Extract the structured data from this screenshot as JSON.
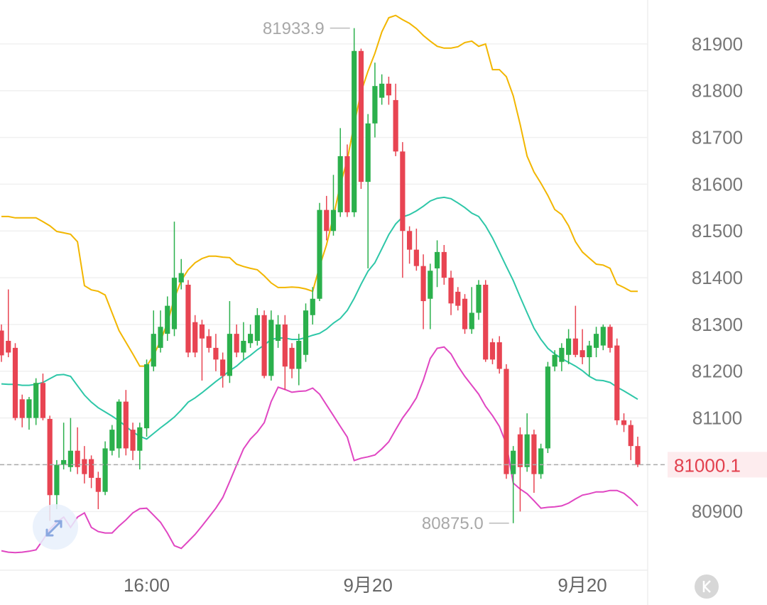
{
  "chart_data": {
    "type": "candlestick",
    "categories": [
      null,
      null,
      null,
      null,
      null,
      null,
      null,
      null,
      null,
      null,
      null,
      null,
      null,
      null,
      null,
      null,
      null,
      null,
      null,
      null,
      null,
      "16:00",
      null,
      null,
      null,
      null,
      null,
      null,
      null,
      null,
      null,
      null,
      null,
      null,
      null,
      null,
      null,
      null,
      null,
      null,
      null,
      null,
      null,
      null,
      null,
      null,
      null,
      null,
      null,
      null,
      null,
      null,
      null,
      "9月20",
      null,
      null,
      null,
      null,
      null,
      null,
      null,
      null,
      null,
      null,
      null,
      null,
      null,
      null,
      null,
      null,
      null,
      null,
      null,
      null,
      null,
      null,
      null,
      null,
      null,
      null,
      null,
      null,
      null,
      null,
      "9月20",
      null,
      null,
      null,
      null,
      null,
      null,
      null,
      null
    ],
    "open": [
      81287,
      81265,
      81250,
      81140,
      81100,
      81100,
      81175,
      81098,
      80935,
      81000,
      80995,
      81030,
      81012,
      81012,
      80972,
      80942,
      81030,
      81035,
      81135,
      81075,
      81030,
      81078,
      81210,
      81250,
      81280,
      81290,
      81390,
      81385,
      81305,
      81300,
      81275,
      81250,
      81225,
      81190,
      81280,
      81240,
      81260,
      81265,
      81320,
      81190,
      81265,
      81300,
      81250,
      81205,
      81235,
      81320,
      81355,
      81545,
      81500,
      81540,
      81660,
      81540,
      81885,
      81605,
      81730,
      81785,
      81815,
      81780,
      81670,
      81500,
      81460,
      81425,
      81355,
      81420,
      81455,
      81400,
      81370,
      81355,
      81290,
      81325,
      81385,
      81262,
      81262,
      81205,
      80980,
      81065,
      80995,
      81065,
      80980,
      81035,
      81210,
      81220,
      81235,
      81270,
      81245,
      81230,
      81250,
      81255,
      81295,
      81255,
      81095,
      81085,
      81040
    ],
    "high": [
      81300,
      81375,
      81260,
      81150,
      81145,
      81185,
      81195,
      81105,
      81010,
      81090,
      81100,
      81080,
      81040,
      81020,
      80985,
      81050,
      81085,
      81140,
      81160,
      81090,
      81090,
      81225,
      81330,
      81330,
      81360,
      81520,
      81440,
      81395,
      81320,
      81310,
      81290,
      81280,
      81240,
      81350,
      81300,
      81305,
      81300,
      81335,
      81330,
      81330,
      81320,
      81320,
      81260,
      81280,
      81345,
      81380,
      81560,
      81575,
      81620,
      81720,
      81685,
      81933.9,
      81890,
      81750,
      81860,
      81835,
      81830,
      81815,
      81690,
      81510,
      81505,
      81450,
      81430,
      81480,
      81470,
      81415,
      81380,
      81365,
      81380,
      81395,
      81395,
      81270,
      81275,
      81215,
      81040,
      81080,
      81110,
      81075,
      81045,
      81220,
      81245,
      81260,
      81290,
      81340,
      81290,
      81265,
      81295,
      81300,
      81300,
      81270,
      81110,
      81095,
      81060
    ],
    "low": [
      81220,
      81230,
      81095,
      81080,
      81075,
      81085,
      81095,
      80880,
      80905,
      80990,
      80985,
      80980,
      80960,
      80950,
      80905,
      80935,
      81020,
      81015,
      81020,
      81010,
      80990,
      81060,
      81200,
      81240,
      81265,
      81275,
      81375,
      81230,
      81230,
      81180,
      81240,
      81200,
      81165,
      81175,
      81230,
      81225,
      81250,
      81255,
      81185,
      81180,
      81250,
      81160,
      81185,
      81170,
      81220,
      81300,
      81350,
      81480,
      81490,
      81530,
      81530,
      81530,
      81590,
      81420,
      81700,
      81770,
      81770,
      81660,
      81400,
      81430,
      81415,
      81290,
      81290,
      81380,
      81385,
      81320,
      81330,
      81280,
      81280,
      81310,
      81220,
      81215,
      81195,
      80970,
      80875,
      80900,
      80985,
      80940,
      80970,
      81025,
      81200,
      81200,
      81215,
      81230,
      81215,
      81190,
      81230,
      81245,
      81240,
      81085,
      81070,
      81010,
      80995
    ],
    "close": [
      81234,
      81240,
      81100,
      81100,
      81140,
      81175,
      81100,
      80935,
      81000,
      81010,
      81030,
      80995,
      80980,
      80972,
      80942,
      81035,
      81075,
      81135,
      81035,
      81030,
      81080,
      81215,
      81280,
      81295,
      81340,
      81400,
      81410,
      81240,
      81240,
      81270,
      81250,
      81225,
      81190,
      81280,
      81240,
      81265,
      81280,
      81320,
      81190,
      81310,
      81300,
      81210,
      81205,
      81265,
      81330,
      81355,
      81545,
      81500,
      81545,
      81660,
      81540,
      81885,
      81605,
      81730,
      81810,
      81815,
      81790,
      81670,
      81500,
      81460,
      81425,
      81350,
      81415,
      81455,
      81400,
      81345,
      81340,
      81290,
      81325,
      81385,
      81225,
      81225,
      81205,
      80980,
      81030,
      80995,
      81065,
      80980,
      81035,
      81210,
      81235,
      81250,
      81270,
      81235,
      81230,
      81255,
      81280,
      81295,
      81250,
      81095,
      81085,
      81040,
      81000.1
    ],
    "up_color": "#2bb04c",
    "down_color": "#e84452",
    "series": [
      {
        "color": "#f2b600",
        "values": [
          81531,
          81531,
          81528,
          81528,
          81528,
          81528,
          81520,
          81511,
          81499,
          81496,
          81493,
          81477,
          81383,
          81374,
          81371,
          81363,
          81325,
          81287,
          81262,
          81237,
          81211,
          81211,
          81234,
          81265,
          81303,
          81356,
          81394,
          81417,
          81432,
          81441,
          81446,
          81446,
          81444,
          81443,
          81429,
          81424,
          81420,
          81417,
          81404,
          81389,
          81379,
          81379,
          81380,
          81379,
          81376,
          81371,
          81424,
          81470,
          81531,
          81599,
          81652,
          81728,
          81797,
          81842,
          81880,
          81926,
          81956,
          81961,
          81952,
          81944,
          81933,
          81918,
          81906,
          81895,
          81891,
          81891,
          81894,
          81903,
          81906,
          81895,
          81900,
          81845,
          81845,
          81830,
          81789,
          81728,
          81660,
          81626,
          81602,
          81576,
          81546,
          81535,
          81511,
          81477,
          81455,
          81442,
          81429,
          81427,
          81420,
          81386,
          81379,
          81371,
          81371
        ]
      },
      {
        "color": "#2ec7a8",
        "values": [
          81173,
          81172,
          81172,
          81170,
          81170,
          81172,
          81176,
          81184,
          81192,
          81193,
          81189,
          81169,
          81149,
          81134,
          81122,
          81113,
          81104,
          81094,
          81082,
          81070,
          81061,
          81055,
          81067,
          81079,
          81090,
          81102,
          81117,
          81134,
          81143,
          81154,
          81166,
          81178,
          81189,
          81201,
          81211,
          81224,
          81234,
          81246,
          81256,
          81268,
          81271,
          81271,
          81268,
          81268,
          81272,
          81277,
          81281,
          81290,
          81303,
          81313,
          81330,
          81356,
          81386,
          81414,
          81432,
          81462,
          81492,
          81515,
          81530,
          81535,
          81543,
          81553,
          81564,
          81570,
          81572,
          81569,
          81560,
          81550,
          81538,
          81531,
          81511,
          81485,
          81455,
          81424,
          81394,
          81359,
          81325,
          81292,
          81268,
          81249,
          81237,
          81227,
          81219,
          81211,
          81201,
          81189,
          81181,
          81180,
          81176,
          81166,
          81158,
          81149,
          81140
        ]
      },
      {
        "color": "#e046c2",
        "values": [
          80816,
          80813,
          80812,
          80813,
          80815,
          80818,
          80839,
          80862,
          80877,
          80888,
          80866,
          80888,
          80897,
          80866,
          80857,
          80854,
          80854,
          80869,
          80882,
          80897,
          80906,
          80907,
          80892,
          80877,
          80854,
          80827,
          80821,
          80836,
          80851,
          80869,
          80888,
          80907,
          80930,
          80964,
          80999,
          81034,
          81055,
          81070,
          81090,
          81135,
          81166,
          81161,
          81155,
          81157,
          81158,
          81164,
          81151,
          81128,
          81105,
          81082,
          81059,
          81009,
          81014,
          81017,
          81021,
          81034,
          81049,
          81075,
          81100,
          81120,
          81143,
          81181,
          81227,
          81249,
          81252,
          81237,
          81211,
          81189,
          81170,
          81151,
          81125,
          81105,
          81082,
          81044,
          80961,
          80948,
          80938,
          80923,
          80907,
          80909,
          80910,
          80912,
          80918,
          80927,
          80935,
          80938,
          80942,
          80942,
          80945,
          80945,
          80939,
          80927,
          80912
        ]
      }
    ],
    "ylim": [
      80779,
      81994
    ],
    "yticks": [
      80900,
      81000,
      81100,
      81200,
      81300,
      81400,
      81500,
      81600,
      81700,
      81800,
      81900
    ],
    "grid": true,
    "high_label": 81933.9,
    "low_label": {
      "value": 80875,
      "label": "80875.0"
    },
    "last_price": 81000.1
  }
}
